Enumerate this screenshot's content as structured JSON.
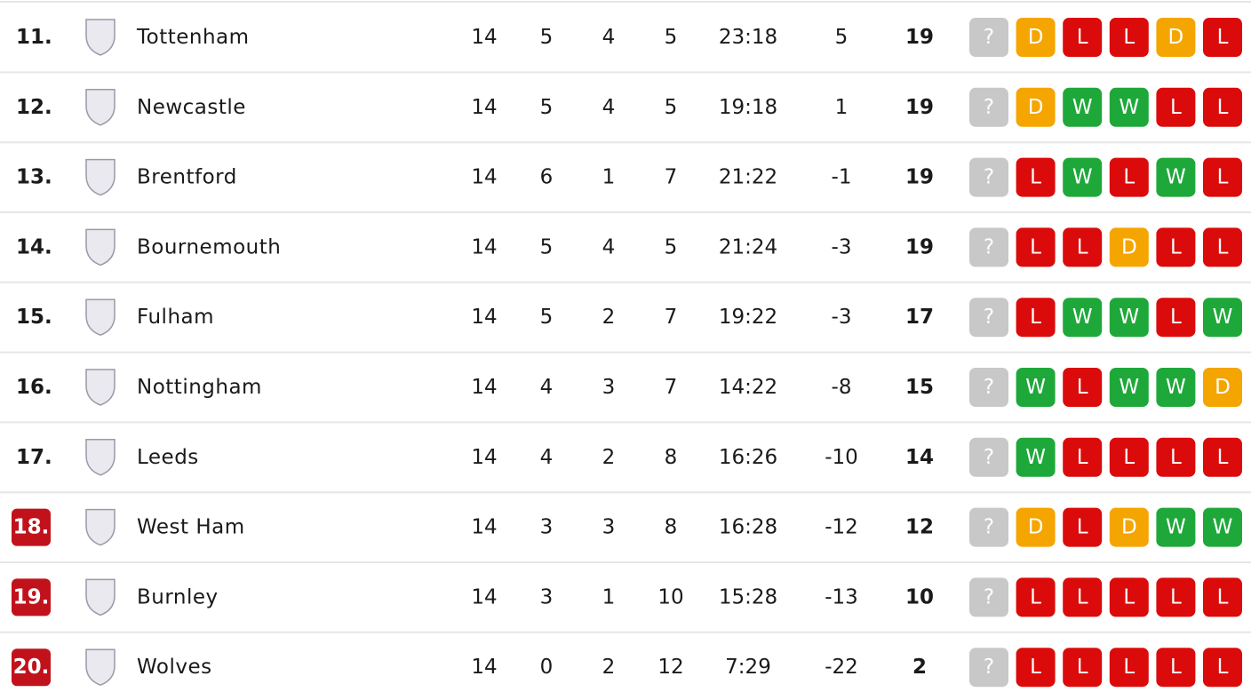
{
  "table": {
    "rows": [
      {
        "rank": "11.",
        "team": "Tottenham",
        "played": 14,
        "won": 5,
        "drawn": 4,
        "lost": 5,
        "goals": "23:18",
        "diff": 5,
        "points": 19,
        "form": [
          "?",
          "D",
          "L",
          "L",
          "D",
          "L"
        ]
      },
      {
        "rank": "12.",
        "team": "Newcastle",
        "played": 14,
        "won": 5,
        "drawn": 4,
        "lost": 5,
        "goals": "19:18",
        "diff": 1,
        "points": 19,
        "form": [
          "?",
          "D",
          "W",
          "W",
          "L",
          "L"
        ]
      },
      {
        "rank": "13.",
        "team": "Brentford",
        "played": 14,
        "won": 6,
        "drawn": 1,
        "lost": 7,
        "goals": "21:22",
        "diff": -1,
        "points": 19,
        "form": [
          "?",
          "L",
          "W",
          "L",
          "W",
          "L"
        ]
      },
      {
        "rank": "14.",
        "team": "Bournemouth",
        "played": 14,
        "won": 5,
        "drawn": 4,
        "lost": 5,
        "goals": "21:24",
        "diff": -3,
        "points": 19,
        "form": [
          "?",
          "L",
          "L",
          "D",
          "L",
          "L"
        ]
      },
      {
        "rank": "15.",
        "team": "Fulham",
        "played": 14,
        "won": 5,
        "drawn": 2,
        "lost": 7,
        "goals": "19:22",
        "diff": -3,
        "points": 17,
        "form": [
          "?",
          "L",
          "W",
          "W",
          "L",
          "W"
        ]
      },
      {
        "rank": "16.",
        "team": "Nottingham",
        "played": 14,
        "won": 4,
        "drawn": 3,
        "lost": 7,
        "goals": "14:22",
        "diff": -8,
        "points": 15,
        "form": [
          "?",
          "W",
          "L",
          "W",
          "W",
          "D"
        ]
      },
      {
        "rank": "17.",
        "team": "Leeds",
        "played": 14,
        "won": 4,
        "drawn": 2,
        "lost": 8,
        "goals": "16:26",
        "diff": -10,
        "points": 14,
        "form": [
          "?",
          "W",
          "L",
          "L",
          "L",
          "L"
        ]
      },
      {
        "rank": "18.",
        "team": "West Ham",
        "played": 14,
        "won": 3,
        "drawn": 3,
        "lost": 8,
        "goals": "16:28",
        "diff": -12,
        "points": 12,
        "form": [
          "?",
          "D",
          "L",
          "D",
          "W",
          "W"
        ],
        "rank_color": "#c1121c"
      },
      {
        "rank": "19.",
        "team": "Burnley",
        "played": 14,
        "won": 3,
        "drawn": 1,
        "lost": 10,
        "goals": "15:28",
        "diff": -13,
        "points": 10,
        "form": [
          "?",
          "L",
          "L",
          "L",
          "L",
          "L"
        ],
        "rank_color": "#c1121c"
      },
      {
        "rank": "20.",
        "team": "Wolves",
        "played": 14,
        "won": 0,
        "drawn": 2,
        "lost": 12,
        "goals": "7:29",
        "diff": -22,
        "points": 2,
        "form": [
          "?",
          "L",
          "L",
          "L",
          "L",
          "L"
        ],
        "rank_color": "#c1121c"
      }
    ]
  }
}
